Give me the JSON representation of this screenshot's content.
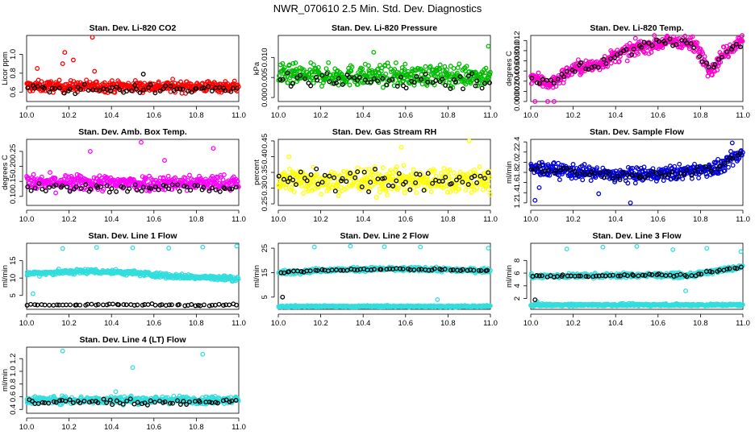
{
  "title": "NWR_070610  2.5 Min. Std. Dev. Diagnostics",
  "chart_data": [
    {
      "type": "scatter",
      "title": "Stan. Dev. Li-820 CO2",
      "xlabel": "",
      "ylabel": "Licor ppm",
      "xlim": [
        10.0,
        11.0
      ],
      "ylim": [
        0.5,
        1.2
      ],
      "xticks": [
        "10.0",
        "10.2",
        "10.4",
        "10.6",
        "10.8",
        "11.0"
      ],
      "yticks": [
        "0.6",
        "0.8",
        "1.0"
      ],
      "color": "#ff0000",
      "series": [
        {
          "color": "#ff0000",
          "mean": 0.66,
          "spread": 0.05,
          "outliers": [
            [
              10.18,
              1.02
            ],
            [
              10.22,
              0.94
            ],
            [
              10.31,
              1.18
            ],
            [
              10.17,
              0.9
            ],
            [
              10.05,
              0.85
            ],
            [
              10.32,
              0.82
            ]
          ]
        },
        {
          "color": "#000000",
          "mean": 0.63,
          "spread": 0.04,
          "outliers": [
            [
              10.55,
              0.79
            ]
          ]
        }
      ]
    },
    {
      "type": "scatter",
      "title": "Stan. Dev. Li-820 Pressure",
      "xlabel": "",
      "ylabel": "kPa",
      "xlim": [
        10.0,
        11.0
      ],
      "ylim": [
        -0.001,
        0.0155
      ],
      "xticks": [
        "10.0",
        "10.2",
        "10.4",
        "10.6",
        "10.8",
        "11.0"
      ],
      "yticks": [
        "0.000",
        "0.005",
        "0.010"
      ],
      "color": "#00bb00",
      "series": [
        {
          "color": "#00bb00",
          "mean": 0.0055,
          "spread": 0.0022,
          "outliers": [
            [
              10.45,
              0.0113
            ],
            [
              10.99,
              0.0128
            ],
            [
              10.07,
              0.0085
            ]
          ]
        },
        {
          "color": "#000000",
          "mean": 0.0042,
          "spread": 0.002,
          "outliers": []
        }
      ]
    },
    {
      "type": "scatter",
      "title": "Stan. Dev. Li-820 Temp.",
      "xlabel": "",
      "ylabel": "degrees C",
      "xlim": [
        10.0,
        11.0
      ],
      "ylim": [
        0.0,
        0.013
      ],
      "xticks": [
        "10.0",
        "10.2",
        "10.4",
        "10.6",
        "10.8",
        "11.0"
      ],
      "yticks": [
        "0.000",
        "0.002",
        "0.004",
        "0.006",
        "0.008",
        "0.010",
        "0.012"
      ],
      "color": "#ff00cc",
      "trend": [
        [
          10.0,
          0.005
        ],
        [
          10.05,
          0.004
        ],
        [
          10.1,
          0.0035
        ],
        [
          10.15,
          0.005
        ],
        [
          10.2,
          0.0065
        ],
        [
          10.3,
          0.007
        ],
        [
          10.4,
          0.009
        ],
        [
          10.5,
          0.0105
        ],
        [
          10.6,
          0.0115
        ],
        [
          10.7,
          0.012
        ],
        [
          10.78,
          0.011
        ],
        [
          10.85,
          0.006
        ],
        [
          10.9,
          0.009
        ],
        [
          11.0,
          0.0125
        ]
      ],
      "series": [
        {
          "color": "#ff00cc",
          "mean": 0,
          "spread": 0.0012,
          "outliers": [
            [
              10.02,
              0.0
            ],
            [
              10.08,
              0.0
            ],
            [
              10.11,
              0.0
            ]
          ]
        },
        {
          "color": "#000000",
          "mean": 0,
          "spread": 0.0008,
          "outliers": []
        }
      ]
    },
    {
      "type": "scatter",
      "title": "Stan. Dev. Amb. Box Temp.",
      "xlabel": "",
      "ylabel": "degrees C",
      "xlim": [
        10.0,
        11.0
      ],
      "ylim": [
        0.07,
        0.29
      ],
      "xticks": [
        "10.0",
        "10.2",
        "10.4",
        "10.6",
        "10.8",
        "11.0"
      ],
      "yticks": [
        "0.10",
        "0.15",
        "0.20",
        "0.25"
      ],
      "color": "#ff00ff",
      "series": [
        {
          "color": "#ff00ff",
          "mean": 0.145,
          "spread": 0.022,
          "outliers": [
            [
              10.54,
              0.28
            ],
            [
              10.88,
              0.26
            ],
            [
              10.3,
              0.25
            ],
            [
              10.65,
              0.22
            ]
          ]
        },
        {
          "color": "#000000",
          "mean": 0.128,
          "spread": 0.012,
          "outliers": []
        }
      ]
    },
    {
      "type": "scatter",
      "title": "Stan. Dev. Gas Stream RH",
      "xlabel": "",
      "ylabel": "percent",
      "xlim": [
        10.0,
        11.0
      ],
      "ylim": [
        0.245,
        0.455
      ],
      "xticks": [
        "10.0",
        "10.2",
        "10.4",
        "10.6",
        "10.8",
        "11.0"
      ],
      "yticks": [
        "0.25",
        "0.30",
        "0.35",
        "0.40",
        "0.45"
      ],
      "color": "#ffff00",
      "series": [
        {
          "color": "#ffff00",
          "mean": 0.325,
          "spread": 0.035,
          "outliers": [
            [
              10.9,
              0.45
            ],
            [
              10.58,
              0.43
            ],
            [
              10.05,
              0.4
            ]
          ]
        },
        {
          "color": "#000000",
          "mean": 0.325,
          "spread": 0.028,
          "outliers": []
        }
      ]
    },
    {
      "type": "scatter",
      "title": "Stan. Dev. Sample Flow",
      "xlabel": "",
      "ylabel": "ml/min",
      "xlim": [
        10.0,
        11.0
      ],
      "ylim": [
        1.15,
        2.45
      ],
      "xticks": [
        "10.0",
        "10.2",
        "10.4",
        "10.6",
        "10.8",
        "11.0"
      ],
      "yticks": [
        "1.2",
        "1.4",
        "1.6",
        "1.8",
        "2.0",
        "2.2",
        "2.4"
      ],
      "color": "#0000dd",
      "trend": [
        [
          10.0,
          1.88
        ],
        [
          10.2,
          1.82
        ],
        [
          10.4,
          1.74
        ],
        [
          10.6,
          1.76
        ],
        [
          10.8,
          1.85
        ],
        [
          10.9,
          1.9
        ],
        [
          11.0,
          2.2
        ]
      ],
      "series": [
        {
          "color": "#0000dd",
          "mean": 0,
          "spread": 0.12,
          "outliers": [
            [
              10.02,
              1.25
            ],
            [
              10.32,
              1.38
            ],
            [
              10.04,
              1.5
            ],
            [
              10.47,
              1.2
            ],
            [
              10.95,
              2.38
            ]
          ]
        },
        {
          "color": "#000000",
          "mean": 0,
          "spread": 0.07,
          "outliers": []
        }
      ]
    },
    {
      "type": "scatter",
      "title": "Stan. Dev. Line 1 Flow",
      "xlabel": "",
      "ylabel": "ml/min",
      "xlim": [
        10.0,
        11.0
      ],
      "ylim": [
        1.0,
        20.0
      ],
      "xticks": [
        "10.0",
        "10.2",
        "10.4",
        "10.6",
        "10.8",
        "11.0"
      ],
      "yticks": [
        "5",
        "10",
        "15"
      ],
      "color": "#33dddd",
      "trend": [
        [
          10.0,
          11.3
        ],
        [
          10.3,
          12.0
        ],
        [
          10.5,
          11.5
        ],
        [
          10.7,
          10.5
        ],
        [
          11.0,
          9.8
        ]
      ],
      "series": [
        {
          "color": "#33dddd",
          "mean": 0,
          "spread": 0.6,
          "outliers": [
            [
              10.17,
              18.5
            ],
            [
              10.33,
              18.8
            ],
            [
              10.5,
              18.7
            ],
            [
              10.67,
              18.6
            ],
            [
              10.83,
              18.9
            ],
            [
              10.99,
              19.2
            ],
            [
              10.03,
              5.5
            ]
          ]
        },
        {
          "color": "#000000",
          "mean": 2.3,
          "spread": 0.25,
          "outliers": []
        }
      ]
    },
    {
      "type": "scatter",
      "title": "Stan. Dev. Line 2 Flow",
      "xlabel": "",
      "ylabel": "ml/min",
      "xlim": [
        10.0,
        11.0
      ],
      "ylim": [
        0.0,
        27.0
      ],
      "xticks": [
        "10.0",
        "10.2",
        "10.4",
        "10.6",
        "10.8",
        "11.0"
      ],
      "yticks": [
        "5",
        "15",
        "25"
      ],
      "color": "#33dddd",
      "trend": [
        [
          10.0,
          15.0
        ],
        [
          10.2,
          16.0
        ],
        [
          10.5,
          16.5
        ],
        [
          10.8,
          16.2
        ],
        [
          11.0,
          15.8
        ]
      ],
      "series": [
        {
          "color": "#33dddd",
          "mean": 0,
          "spread": 0.7,
          "outliers": [
            [
              10.17,
              25.5
            ],
            [
              10.34,
              25.8
            ],
            [
              10.5,
              25.6
            ],
            [
              10.67,
              25.5
            ],
            [
              10.99,
              25.0
            ],
            [
              10.75,
              4.0
            ]
          ]
        },
        {
          "color": "#33dddd",
          "mean": 1.2,
          "spread": 0.3,
          "outliers": []
        },
        {
          "color": "#000000",
          "mean": 0,
          "spread": 0.3,
          "outliers": [
            [
              10.02,
              5.0
            ]
          ]
        }
      ]
    },
    {
      "type": "scatter",
      "title": "Stan. Dev. Line 3 Flow",
      "xlabel": "",
      "ylabel": "ml/min",
      "xlim": [
        10.0,
        11.0
      ],
      "ylim": [
        0.3,
        10.7
      ],
      "xticks": [
        "10.0",
        "10.2",
        "10.4",
        "10.6",
        "10.8",
        "11.0"
      ],
      "yticks": [
        "2",
        "4",
        "6",
        "8"
      ],
      "color": "#33dddd",
      "trend": [
        [
          10.0,
          5.5
        ],
        [
          10.3,
          5.6
        ],
        [
          10.6,
          5.7
        ],
        [
          10.75,
          5.6
        ],
        [
          10.85,
          6.2
        ],
        [
          11.0,
          7.0
        ]
      ],
      "series": [
        {
          "color": "#33dddd",
          "mean": 0,
          "spread": 0.3,
          "outliers": [
            [
              10.17,
              9.8
            ],
            [
              10.34,
              10.1
            ],
            [
              10.5,
              10.2
            ],
            [
              10.67,
              9.7
            ],
            [
              10.83,
              9.9
            ],
            [
              10.99,
              9.4
            ],
            [
              10.73,
              3.2
            ],
            [
              10.03,
              1.5
            ]
          ]
        },
        {
          "color": "#33dddd",
          "mean": 1.0,
          "spread": 0.15,
          "outliers": []
        },
        {
          "color": "#000000",
          "mean": 0,
          "spread": 0.15,
          "outliers": [
            [
              10.02,
              1.8
            ]
          ]
        }
      ]
    },
    {
      "type": "scatter",
      "title": "Stan. Dev. Line 4 (LT) Flow",
      "xlabel": "",
      "ylabel": "ml/min",
      "xlim": [
        10.0,
        11.0
      ],
      "ylim": [
        0.34,
        1.38
      ],
      "xticks": [
        "10.0",
        "10.2",
        "10.4",
        "10.6",
        "10.8",
        "11.0"
      ],
      "yticks": [
        "0.4",
        "0.6",
        "0.8",
        "1.0",
        "1.2"
      ],
      "color": "#33dddd",
      "series": [
        {
          "color": "#33dddd",
          "mean": 0.55,
          "spread": 0.05,
          "outliers": [
            [
              10.17,
              1.32
            ],
            [
              10.5,
              1.06
            ],
            [
              10.83,
              1.27
            ],
            [
              10.42,
              0.68
            ]
          ]
        },
        {
          "color": "#000000",
          "mean": 0.52,
          "spread": 0.04,
          "outliers": []
        }
      ]
    }
  ]
}
